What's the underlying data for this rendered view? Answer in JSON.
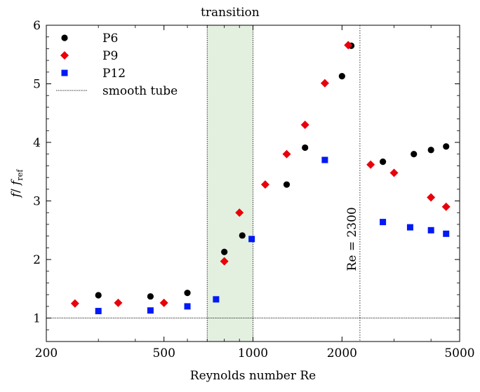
{
  "chart_data": {
    "type": "scatter",
    "title": "",
    "xlabel": "Reynolds number Re",
    "ylabel": "f / f_ref",
    "ylabel_main": "f",
    "ylabel_sep": "/ ",
    "ylabel_den": "f",
    "ylabel_sub": "ref",
    "xscale": "log",
    "xlim": [
      200,
      5000
    ],
    "ylim": [
      0.6,
      6
    ],
    "xticks": [
      200,
      500,
      1000,
      2000,
      5000
    ],
    "xtick_labels": [
      "200",
      "500",
      "1000",
      "2000",
      "5000"
    ],
    "yticks": [
      1,
      2,
      3,
      4,
      5,
      6
    ],
    "ytick_labels": [
      "1",
      "2",
      "3",
      "4",
      "5",
      "6"
    ],
    "grid": false,
    "legend_position": "top-left",
    "transition_band": {
      "x0": 700,
      "x1": 1000,
      "color": "#e3f0e0",
      "label": "transition"
    },
    "critical_line": {
      "x": 2300,
      "label": "Re = 2300"
    },
    "series": [
      {
        "name": "P6",
        "marker": "circle",
        "color": "#000000",
        "x": [
          300,
          450,
          600,
          800,
          920,
          1300,
          1500,
          2000,
          2150,
          2750,
          3500,
          4000,
          4500
        ],
        "y": [
          1.39,
          1.37,
          1.43,
          2.13,
          2.41,
          3.28,
          3.91,
          5.13,
          5.65,
          3.67,
          3.8,
          3.87,
          3.93
        ]
      },
      {
        "name": "P9",
        "marker": "diamond",
        "color": "#e8000b",
        "x": [
          250,
          350,
          500,
          800,
          900,
          1100,
          1300,
          1500,
          1750,
          2100,
          2500,
          3000,
          4000,
          4500
        ],
        "y": [
          1.25,
          1.26,
          1.26,
          1.97,
          2.8,
          3.28,
          3.8,
          4.3,
          5.01,
          5.66,
          3.62,
          3.48,
          3.06,
          2.9
        ]
      },
      {
        "name": "P12",
        "marker": "square",
        "color": "#0019f5",
        "x": [
          300,
          450,
          600,
          750,
          990,
          1750,
          2750,
          3400,
          4000,
          4500
        ],
        "y": [
          1.12,
          1.13,
          1.2,
          1.32,
          2.35,
          3.7,
          2.64,
          2.55,
          2.5,
          2.44
        ]
      }
    ],
    "reference_line": {
      "name": "smooth tube",
      "y": 1
    }
  }
}
